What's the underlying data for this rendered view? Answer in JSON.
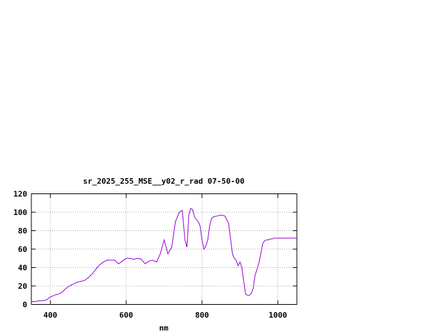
{
  "chart_data": {
    "type": "line",
    "title": "sr_2025_255_MSE__y02_r_rad 07-50-00",
    "xlabel": "nm",
    "ylabel": "",
    "xlim": [
      350,
      1050
    ],
    "ylim": [
      0,
      120
    ],
    "xticks": [
      400,
      600,
      800,
      1000
    ],
    "yticks": [
      0,
      20,
      40,
      60,
      80,
      100,
      120
    ],
    "grid": true,
    "line_color": "#9400d3",
    "series": [
      {
        "x": [
          350,
          360,
          370,
          380,
          390,
          400,
          410,
          420,
          430,
          440,
          450,
          460,
          470,
          480,
          490,
          500,
          510,
          520,
          530,
          540,
          550,
          560,
          570,
          580,
          590,
          600,
          610,
          620,
          630,
          640,
          650,
          660,
          670,
          680,
          690,
          700,
          710,
          720,
          730,
          740,
          748,
          755,
          760,
          765,
          770,
          775,
          780,
          785,
          790,
          795,
          800,
          805,
          810,
          815,
          820,
          825,
          830,
          840,
          850,
          860,
          870,
          880,
          885,
          890,
          895,
          900,
          905,
          910,
          915,
          920,
          925,
          930,
          935,
          940,
          945,
          950,
          955,
          960,
          965,
          970,
          975,
          980,
          985,
          990,
          1000,
          1010,
          1020,
          1030,
          1040,
          1050
        ],
        "y": [
          3,
          3,
          4,
          4,
          5,
          8,
          10,
          11,
          13,
          17,
          20,
          22,
          24,
          25,
          26,
          29,
          33,
          38,
          43,
          46,
          48,
          48,
          48,
          44,
          47,
          50,
          50,
          49,
          50,
          49,
          44,
          47,
          48,
          46,
          55,
          70,
          55,
          62,
          90,
          100,
          102,
          70,
          62,
          97,
          104,
          103,
          95,
          92,
          90,
          85,
          70,
          60,
          63,
          70,
          85,
          93,
          95,
          96,
          97,
          96,
          88,
          55,
          50,
          48,
          42,
          46,
          40,
          25,
          11,
          10,
          10,
          12,
          18,
          32,
          38,
          45,
          55,
          66,
          69,
          70,
          70,
          71,
          71,
          72,
          72,
          72,
          72,
          72,
          72,
          72
        ]
      }
    ]
  }
}
